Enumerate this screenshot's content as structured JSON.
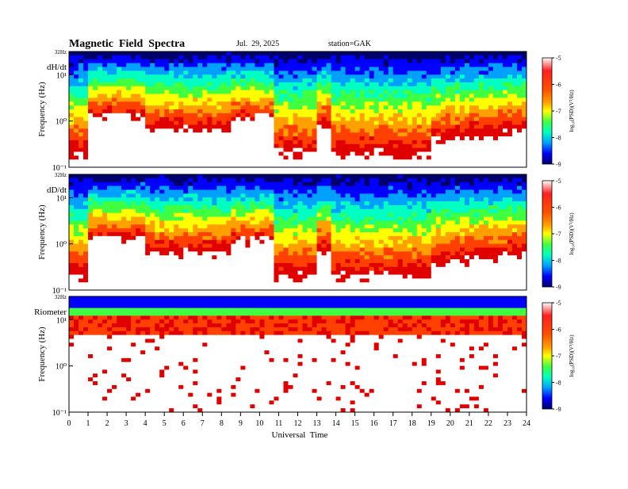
{
  "header": {
    "title": "Magnetic  Field  Spectra",
    "date": "Jul.  29, 2025",
    "station": "station=GAK"
  },
  "colors": {
    "colormap": [
      "#ffffff",
      "#e00000",
      "#ff4000",
      "#ffa000",
      "#ffff00",
      "#40ff40",
      "#00ffc0",
      "#00a0ff",
      "#0000ff",
      "#00006a"
    ]
  },
  "chart_data": [
    {
      "type": "heatmap",
      "panel_label": "dH/dt",
      "ylabel": "Frequency  (Hz)",
      "yticks": [
        "10¹",
        "10⁰",
        "10⁻¹"
      ],
      "ytop_label": "32Hz",
      "ylim": [
        0.1,
        32
      ],
      "yscale": "log",
      "xlim": [
        0,
        24
      ],
      "colorbar": {
        "label": "log₁₀(PSD)(V²/Hz)",
        "ticks": [
          "-5",
          "-6",
          "-7",
          "-8",
          "-9"
        ],
        "range": [
          -9,
          -5
        ]
      }
    },
    {
      "type": "heatmap",
      "panel_label": "dD/dt",
      "ylabel": "Frequency  (Hz)",
      "yticks": [
        "10¹",
        "10⁰",
        "10⁻¹"
      ],
      "ytop_label": "32Hz",
      "ylim": [
        0.1,
        32
      ],
      "yscale": "log",
      "xlim": [
        0,
        24
      ],
      "colorbar": {
        "label": "log₁₀(PSD)(V²/Hz)",
        "ticks": [
          "-5",
          "-6",
          "-7",
          "-8",
          "-9"
        ],
        "range": [
          -9,
          -5
        ]
      }
    },
    {
      "type": "heatmap",
      "panel_label": "Riometer",
      "ylabel": "Frequency  (Hz)",
      "yticks": [
        "10¹",
        "10⁰",
        "10⁻¹"
      ],
      "ytop_label": "32Hz",
      "ylim": [
        0.1,
        32
      ],
      "yscale": "log",
      "xlim": [
        0,
        24
      ],
      "colorbar": {
        "label": "log₁₀(PSD)(V²/Hz)",
        "ticks": [
          "-5",
          "-6",
          "-7",
          "-8",
          "-9"
        ],
        "range": [
          -9,
          -5
        ]
      }
    }
  ],
  "xaxis": {
    "label": "Universal  Time",
    "ticks": [
      "0",
      "1",
      "2",
      "3",
      "4",
      "5",
      "6",
      "7",
      "8",
      "9",
      "10",
      "11",
      "12",
      "13",
      "14",
      "15",
      "16",
      "17",
      "18",
      "19",
      "20",
      "21",
      "22",
      "23",
      "24"
    ]
  }
}
